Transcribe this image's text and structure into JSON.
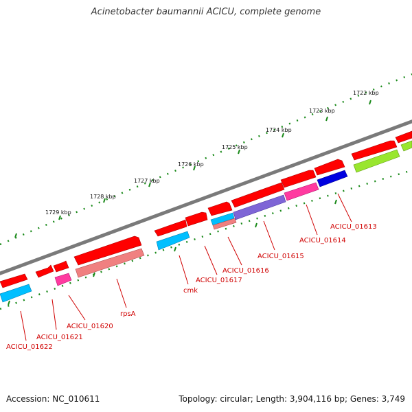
{
  "title": "Acinetobacter baumannii ACICU, complete genome",
  "footer": {
    "accession": "Accession: NC_010611",
    "stats": "Topology: circular; Length: 3,904,116 bp; Genes: 3,749"
  },
  "kbp_ticks": [
    "1722 kbp",
    "1723 kbp",
    "1724 kbp",
    "1725 kbp",
    "1726 kbp",
    "1727 kbp",
    "1728 kbp",
    "1729 kbp"
  ],
  "gene_labels": [
    "ACICU_01613",
    "ACICU_01614",
    "ACICU_01615",
    "ACICU_01616",
    "ACICU_01617",
    "cmk",
    "rpsA",
    "ACICU_01620",
    "ACICU_01621",
    "ACICU_01622"
  ],
  "colors": {
    "backbone": "#7a7a7a",
    "gene_arrow": "#ff0000",
    "cog_cyan": "#00bfff",
    "cog_magenta": "#ff3aa0",
    "cog_salmon": "#f08080",
    "cog_violet": "#7e65d6",
    "cog_blue": "#0000e0",
    "cog_lime": "#99e62e",
    "scale": "#1a8a1a",
    "label": "#d00000"
  }
}
